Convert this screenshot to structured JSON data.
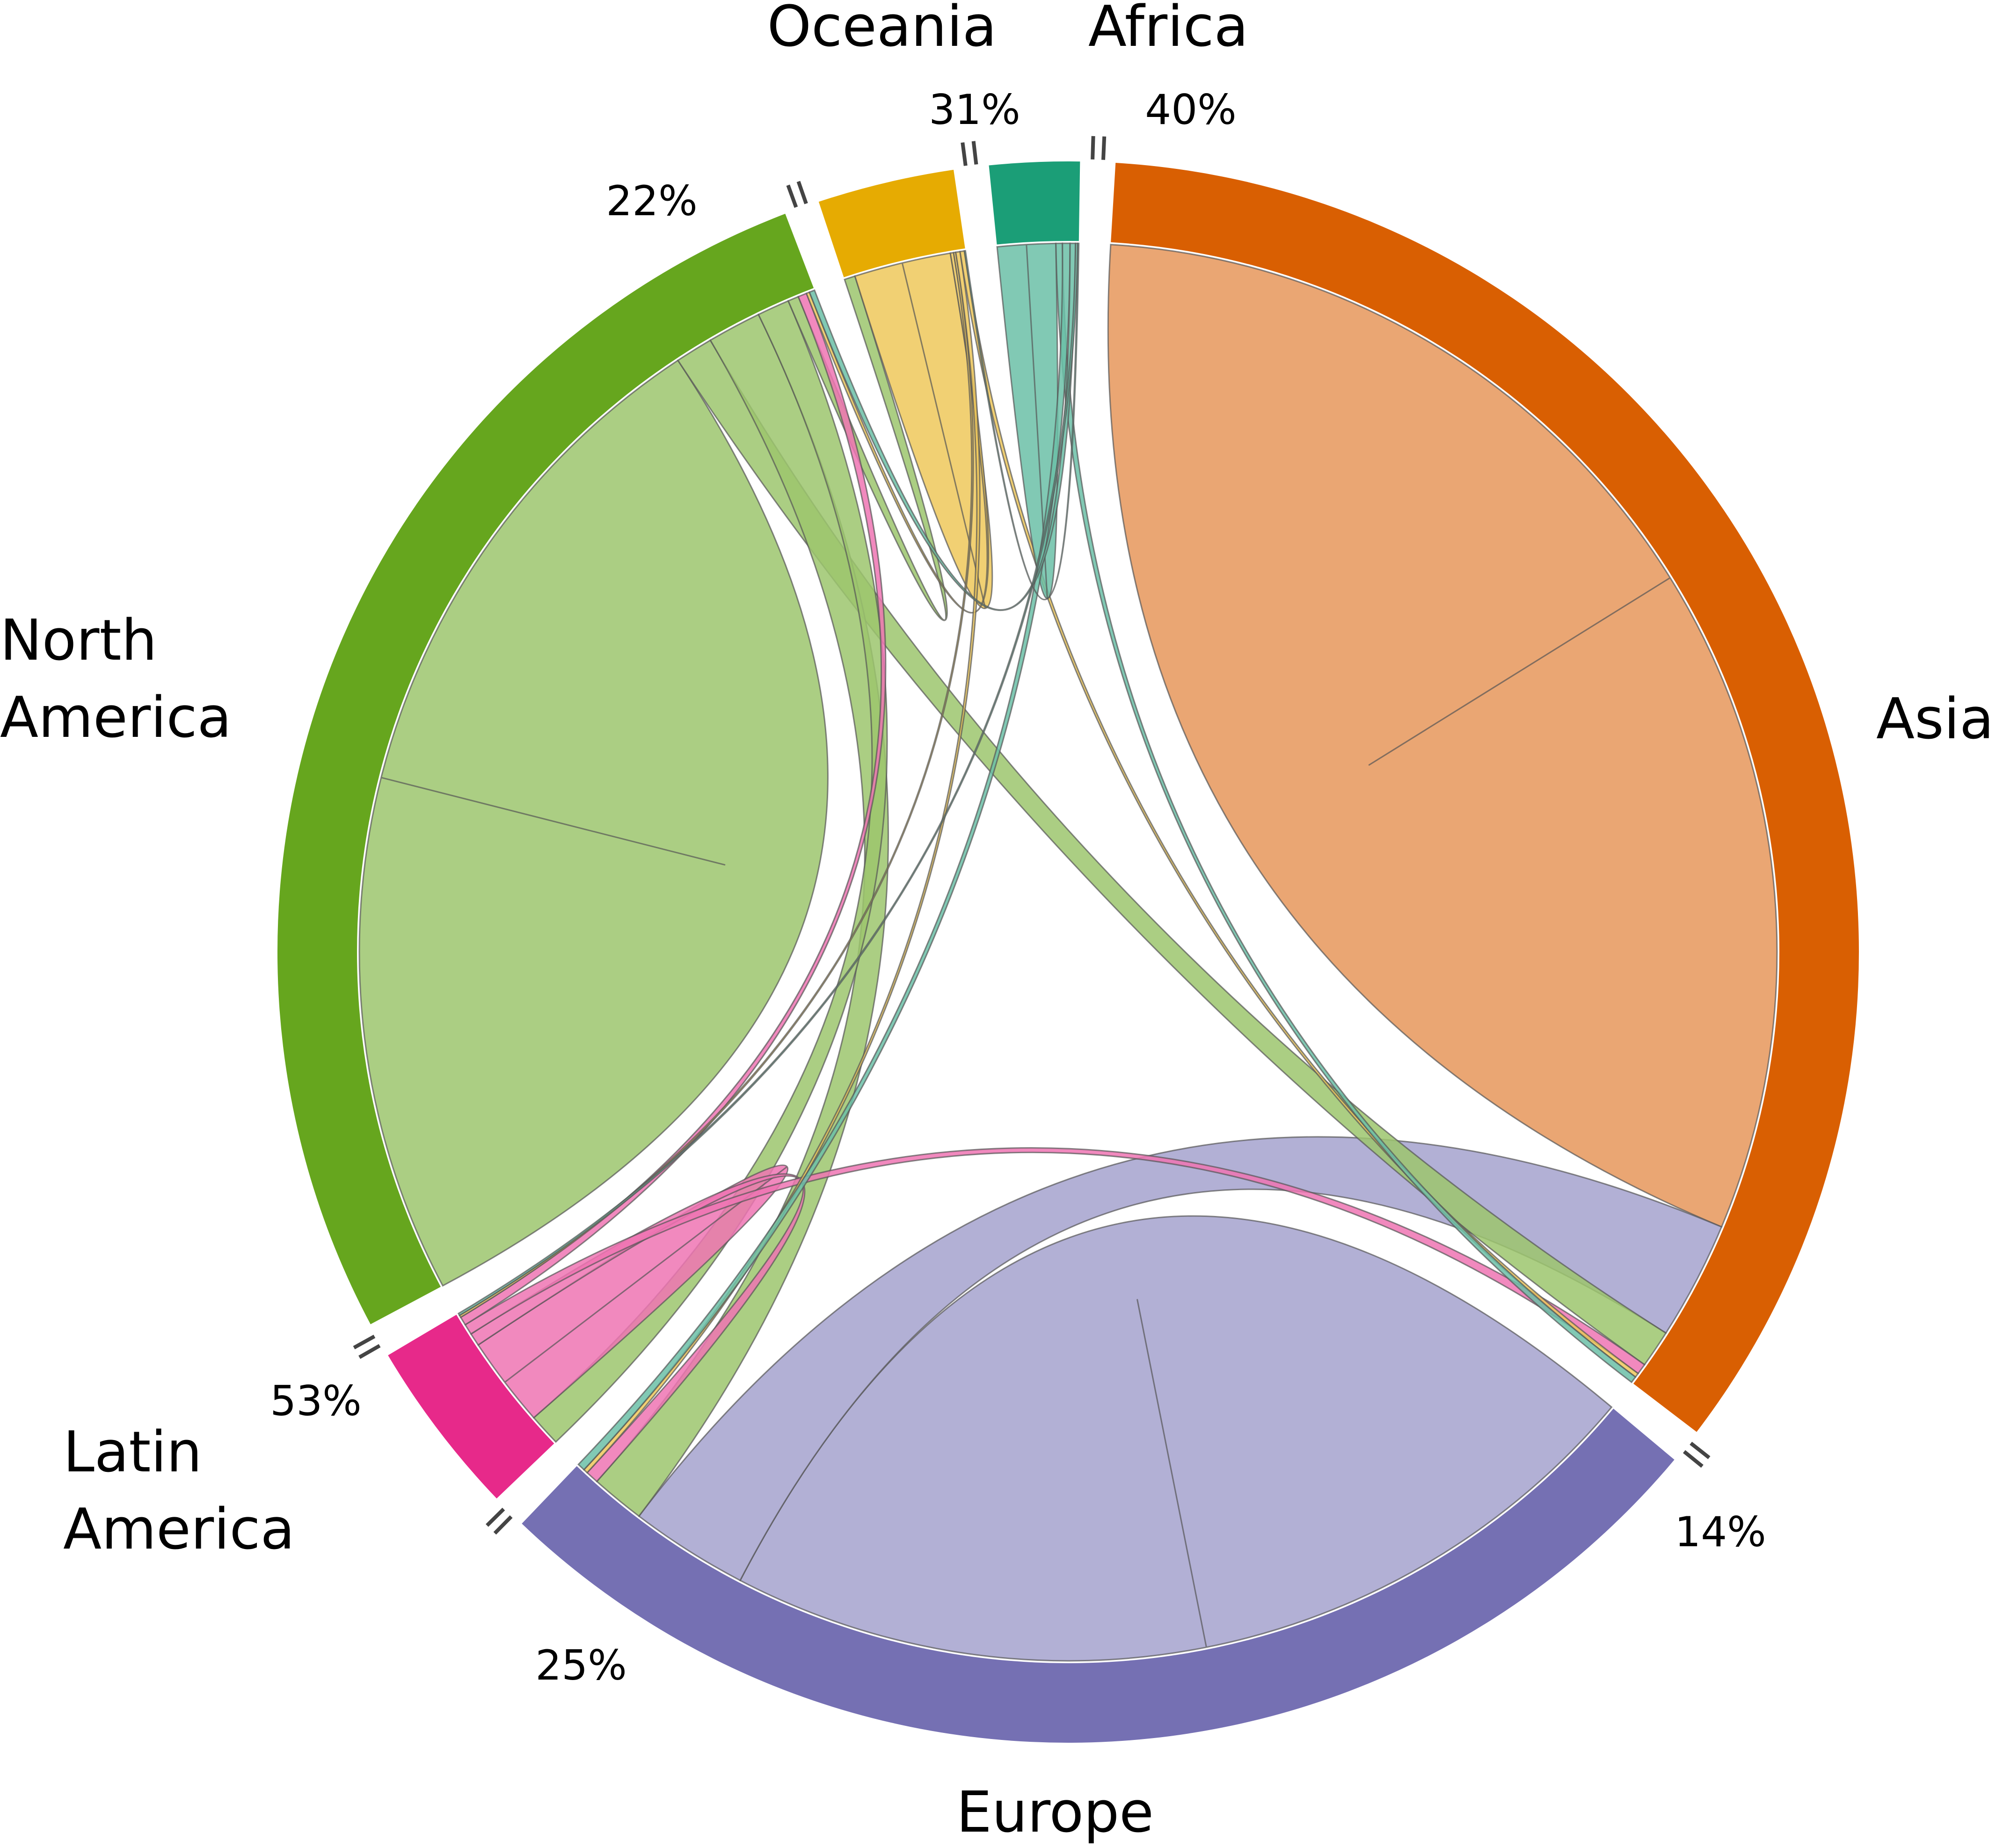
{
  "chart_data": {
    "type": "chord",
    "title": "",
    "regions": [
      {
        "id": "asia",
        "label": "Asia",
        "color": "#d95f02",
        "percent_label": "14%"
      },
      {
        "id": "europe",
        "label": "Europe",
        "color": "#7570b3",
        "percent_label": "25%"
      },
      {
        "id": "latin_america",
        "label": "Latin\nAmerica",
        "color": "#e7298a",
        "percent_label": "53%"
      },
      {
        "id": "north_america",
        "label": "North\nAmerica",
        "color": "#66a61e",
        "percent_label": "22%"
      },
      {
        "id": "oceania",
        "label": "Oceania",
        "color": "#e6ab02",
        "percent_label": "31%"
      },
      {
        "id": "africa",
        "label": "Africa",
        "color": "#1b9e77",
        "percent_label": "40%"
      }
    ],
    "flows": [
      {
        "from": "asia",
        "to": "asia",
        "weight": 62.0
      },
      {
        "from": "europe",
        "to": "europe",
        "weight": 44.0
      },
      {
        "from": "europe",
        "to": "asia",
        "weight": 11.0
      },
      {
        "from": "north_america",
        "to": "north_america",
        "weight": 48.0
      },
      {
        "from": "north_america",
        "to": "asia",
        "weight": 3.5
      },
      {
        "from": "north_america",
        "to": "europe",
        "weight": 5.0
      },
      {
        "from": "north_america",
        "to": "latin_america",
        "weight": 3.0
      },
      {
        "from": "north_america",
        "to": "oceania",
        "weight": 1.0
      },
      {
        "from": "latin_america",
        "to": "latin_america",
        "weight": 4.2
      },
      {
        "from": "latin_america",
        "to": "europe",
        "weight": 1.2
      },
      {
        "from": "latin_america",
        "to": "asia",
        "weight": 1.0
      },
      {
        "from": "latin_america",
        "to": "north_america",
        "weight": 0.8
      },
      {
        "from": "oceania",
        "to": "oceania",
        "weight": 4.5
      },
      {
        "from": "oceania",
        "to": "north_america",
        "weight": 0.3
      },
      {
        "from": "oceania",
        "to": "latin_america",
        "weight": 0.2
      },
      {
        "from": "oceania",
        "to": "europe",
        "weight": 0.4
      },
      {
        "from": "oceania",
        "to": "asia",
        "weight": 0.4
      },
      {
        "from": "africa",
        "to": "africa",
        "weight": 2.7
      },
      {
        "from": "africa",
        "to": "asia",
        "weight": 0.6
      },
      {
        "from": "africa",
        "to": "europe",
        "weight": 0.7
      },
      {
        "from": "africa",
        "to": "north_america",
        "weight": 0.5
      },
      {
        "from": "africa",
        "to": "latin_america",
        "weight": 0.2
      },
      {
        "from": "africa",
        "to": "oceania",
        "weight": 0.1
      }
    ]
  }
}
